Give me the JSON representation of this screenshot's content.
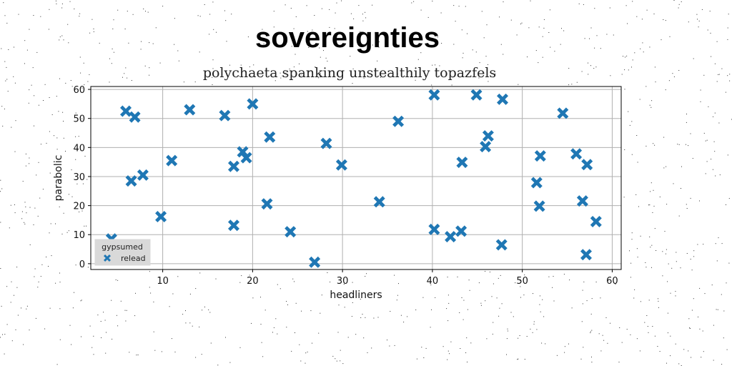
{
  "chart_data": {
    "type": "scatter",
    "title": "sovereignties",
    "subtitle": "polychaeta spanking unstealthily topazfels",
    "xlabel": "headliners",
    "ylabel": "parabolic",
    "xlim": [
      2,
      61
    ],
    "ylim": [
      -2,
      61
    ],
    "xticks": [
      10,
      20,
      30,
      40,
      50,
      60
    ],
    "yticks": [
      0,
      10,
      20,
      30,
      40,
      50,
      60
    ],
    "grid": true,
    "legend": {
      "title": "gypsumed",
      "placement": "lower-left"
    },
    "series": [
      {
        "name": "relead",
        "marker": "x-filled",
        "color": "#1f77b4",
        "points": [
          [
            4.3,
            8.5
          ],
          [
            5.9,
            52.5
          ],
          [
            6.9,
            50.5
          ],
          [
            6.5,
            28.5
          ],
          [
            7.8,
            30.5
          ],
          [
            9.8,
            16.2
          ],
          [
            11.0,
            35.5
          ],
          [
            13.0,
            53.0
          ],
          [
            16.9,
            51.0
          ],
          [
            17.9,
            33.5
          ],
          [
            17.9,
            13.2
          ],
          [
            18.9,
            38.5
          ],
          [
            19.3,
            36.5
          ],
          [
            20.0,
            55.0
          ],
          [
            21.6,
            20.6
          ],
          [
            21.9,
            43.6
          ],
          [
            24.2,
            11.0
          ],
          [
            26.9,
            0.5
          ],
          [
            28.2,
            41.4
          ],
          [
            29.9,
            34.0
          ],
          [
            34.1,
            21.3
          ],
          [
            36.2,
            49.0
          ],
          [
            40.2,
            58.1
          ],
          [
            40.2,
            11.8
          ],
          [
            42.0,
            9.3
          ],
          [
            43.2,
            11.2
          ],
          [
            43.3,
            34.9
          ],
          [
            44.9,
            58.1
          ],
          [
            45.9,
            40.3
          ],
          [
            46.2,
            44.0
          ],
          [
            47.7,
            6.5
          ],
          [
            47.8,
            56.6
          ],
          [
            51.6,
            27.9
          ],
          [
            51.9,
            19.8
          ],
          [
            52.0,
            37.1
          ],
          [
            54.5,
            51.8
          ],
          [
            56.0,
            37.8
          ],
          [
            56.7,
            21.6
          ],
          [
            57.1,
            3.1
          ],
          [
            57.2,
            34.1
          ],
          [
            58.2,
            14.5
          ]
        ]
      }
    ]
  }
}
